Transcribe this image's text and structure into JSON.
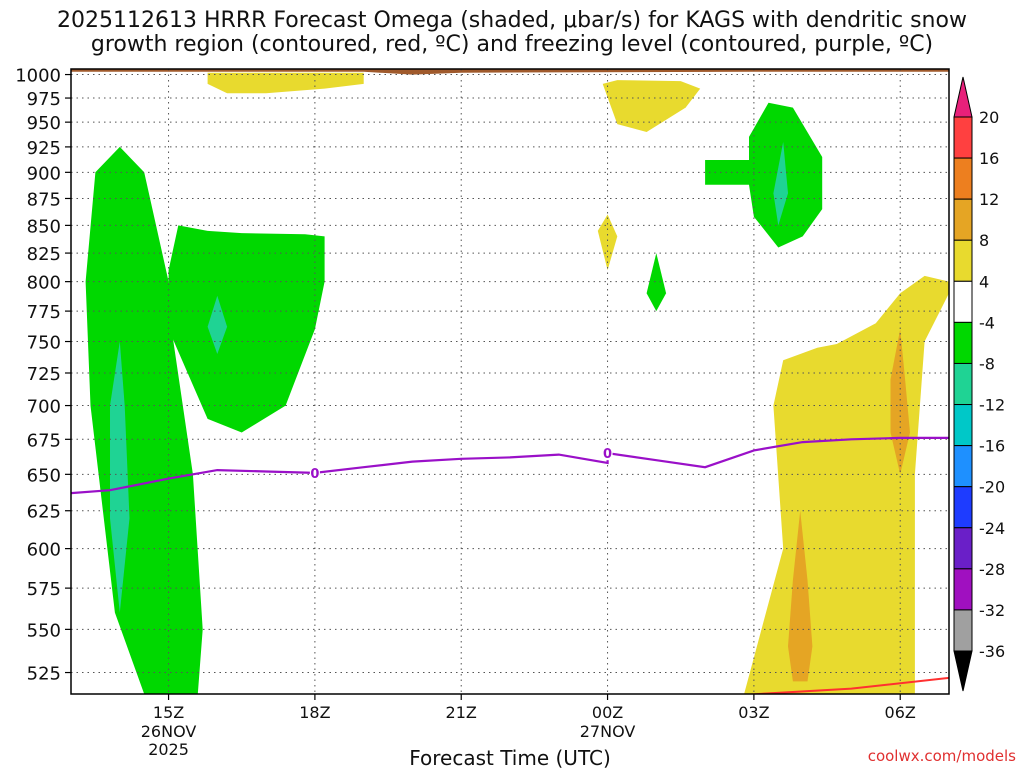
{
  "title_line1": "2025112613 HRRR Forecast Omega (shaded, μbar/s) for KAGS with dendritic snow",
  "title_line2": "growth region (contoured, red, ºC) and freezing level (contoured, purple, ºC)",
  "watermark": "coolwx.com/models",
  "chart_data": {
    "type": "heatmap",
    "xlabel": "Forecast Time (UTC)",
    "x_ticks": [
      {
        "label": "15Z",
        "sub1": "26NOV",
        "sub2": "2025",
        "hour": 15
      },
      {
        "label": "18Z",
        "sub1": "",
        "sub2": "",
        "hour": 18
      },
      {
        "label": "21Z",
        "sub1": "",
        "sub2": "",
        "hour": 21
      },
      {
        "label": "00Z",
        "sub1": "27NOV",
        "sub2": "",
        "hour": 24
      },
      {
        "label": "03Z",
        "sub1": "",
        "sub2": "",
        "hour": 27
      },
      {
        "label": "06Z",
        "sub1": "",
        "sub2": "",
        "hour": 30
      }
    ],
    "x_range": [
      13,
      31
    ],
    "y_ticks": [
      "525",
      "550",
      "575",
      "600",
      "625",
      "650",
      "675",
      "700",
      "725",
      "750",
      "775",
      "800",
      "825",
      "850",
      "875",
      "900",
      "925",
      "950",
      "975",
      "1000"
    ],
    "y_range": [
      1006,
      513
    ],
    "y_scale": "log",
    "colorbar": {
      "labels": [
        "20",
        "16",
        "12",
        "8",
        "4",
        "-4",
        "-8",
        "-12",
        "-16",
        "-20",
        "-24",
        "-28",
        "-32",
        "-36"
      ],
      "colors": [
        "#ff4040",
        "#ed7f1f",
        "#e5a524",
        "#e8da2e",
        "#ffffff",
        "#00d800",
        "#1fd394",
        "#00c8c8",
        "#1e90ff",
        "#1e3cff",
        "#6a1fc8",
        "#a010c0",
        "#a0a0a0"
      ],
      "top_arrow_color": "#e8207a",
      "bottom_arrow_color": "#000000"
    },
    "freezing_level": {
      "label": "0",
      "points": [
        [
          13,
          637
        ],
        [
          13.8,
          639
        ],
        [
          15,
          647
        ],
        [
          16,
          653
        ],
        [
          17,
          652
        ],
        [
          18,
          651
        ],
        [
          19,
          655
        ],
        [
          20,
          659
        ],
        [
          21,
          661
        ],
        [
          22,
          662
        ],
        [
          23,
          664
        ],
        [
          24,
          658
        ],
        [
          24,
          665
        ],
        [
          25,
          660
        ],
        [
          26,
          655
        ],
        [
          27,
          667
        ],
        [
          28,
          673
        ],
        [
          29,
          675
        ],
        [
          30,
          676
        ],
        [
          31,
          676
        ]
      ],
      "label_hours": [
        18,
        24
      ]
    },
    "dgz_line": {
      "points": [
        [
          25.2,
          510
        ],
        [
          29,
          516
        ],
        [
          31,
          522
        ]
      ]
    },
    "omega_regions": [
      {
        "value": -6,
        "points": [
          [
            14.5,
            513
          ],
          [
            15.6,
            513
          ],
          [
            15.7,
            550
          ],
          [
            15.5,
            650
          ],
          [
            15.1,
            750
          ],
          [
            15,
            800
          ],
          [
            14.5,
            900
          ],
          [
            14,
            925
          ],
          [
            13.5,
            900
          ],
          [
            13.3,
            800
          ],
          [
            13.4,
            700
          ],
          [
            13.9,
            560
          ]
        ]
      },
      {
        "value": -10,
        "points": [
          [
            14,
            560
          ],
          [
            14.2,
            620
          ],
          [
            14.1,
            700
          ],
          [
            14,
            750
          ],
          [
            13.8,
            700
          ],
          [
            13.8,
            620
          ]
        ]
      },
      {
        "value": -6,
        "points": [
          [
            15,
            760
          ],
          [
            15.8,
            690
          ],
          [
            16.5,
            680
          ],
          [
            17.4,
            700
          ],
          [
            18,
            760
          ],
          [
            18.2,
            800
          ],
          [
            18.2,
            840
          ],
          [
            17.8,
            842
          ],
          [
            16.5,
            843
          ],
          [
            15.8,
            845
          ],
          [
            15.2,
            850
          ],
          [
            15,
            810
          ]
        ]
      },
      {
        "value": -10,
        "points": [
          [
            16,
            740
          ],
          [
            16.2,
            762
          ],
          [
            16,
            788
          ],
          [
            15.8,
            762
          ]
        ]
      },
      {
        "value": -6,
        "points": [
          [
            25,
            775
          ],
          [
            25.2,
            790
          ],
          [
            25,
            825
          ],
          [
            24.8,
            790
          ]
        ]
      },
      {
        "value": -6,
        "points": [
          [
            26,
            888
          ],
          [
            26.9,
            888
          ],
          [
            27,
            858
          ],
          [
            27.5,
            830
          ],
          [
            28,
            840
          ],
          [
            28.4,
            865
          ],
          [
            28.4,
            915
          ],
          [
            27.8,
            965
          ],
          [
            27.3,
            970
          ],
          [
            26.9,
            935
          ],
          [
            26.9,
            912
          ],
          [
            26,
            912
          ]
        ]
      },
      {
        "value": -10,
        "points": [
          [
            27.5,
            850
          ],
          [
            27.7,
            880
          ],
          [
            27.6,
            930
          ],
          [
            27.4,
            880
          ]
        ]
      },
      {
        "value": 6,
        "points": [
          [
            26.8,
            513
          ],
          [
            29.5,
            513
          ],
          [
            30.3,
            513
          ],
          [
            30.3,
            650
          ],
          [
            30.5,
            750
          ],
          [
            31,
            790
          ],
          [
            31,
            800
          ],
          [
            30.5,
            805
          ],
          [
            30,
            790
          ],
          [
            29.5,
            765
          ],
          [
            28.7,
            748
          ],
          [
            28.3,
            745
          ],
          [
            27.6,
            735
          ],
          [
            27.4,
            700
          ],
          [
            27.6,
            600
          ]
        ]
      },
      {
        "value": 10,
        "points": [
          [
            27.8,
            520
          ],
          [
            28.1,
            520
          ],
          [
            28.2,
            540
          ],
          [
            28.1,
            580
          ],
          [
            27.95,
            625
          ],
          [
            27.8,
            580
          ],
          [
            27.7,
            540
          ]
        ]
      },
      {
        "value": 10,
        "points": [
          [
            30,
            650
          ],
          [
            30.2,
            680
          ],
          [
            30.1,
            720
          ],
          [
            30,
            760
          ],
          [
            29.8,
            720
          ],
          [
            29.8,
            680
          ]
        ]
      },
      {
        "value": 6,
        "points": [
          [
            23.8,
            845
          ],
          [
            24,
            810
          ],
          [
            24.2,
            840
          ],
          [
            24,
            860
          ]
        ]
      },
      {
        "value": 6,
        "points": [
          [
            23.9,
            990
          ],
          [
            24.2,
            948
          ],
          [
            24.8,
            940
          ],
          [
            25.6,
            965
          ],
          [
            25.9,
            985
          ],
          [
            25.5,
            993
          ],
          [
            24.2,
            994
          ]
        ]
      },
      {
        "value": 6,
        "points": [
          [
            15.8,
            990
          ],
          [
            16.2,
            980
          ],
          [
            17,
            980
          ],
          [
            18.2,
            985
          ],
          [
            19,
            990
          ],
          [
            19,
            1002
          ],
          [
            15.8,
            1002
          ]
        ]
      }
    ],
    "terrain": {
      "color": "#a05a2c",
      "points": [
        [
          13,
          1003
        ],
        [
          19,
          1003
        ],
        [
          20,
          1000
        ],
        [
          21,
          1002
        ],
        [
          27,
          1003
        ],
        [
          31,
          1003
        ],
        [
          31,
          1007
        ],
        [
          13,
          1007
        ]
      ]
    }
  }
}
